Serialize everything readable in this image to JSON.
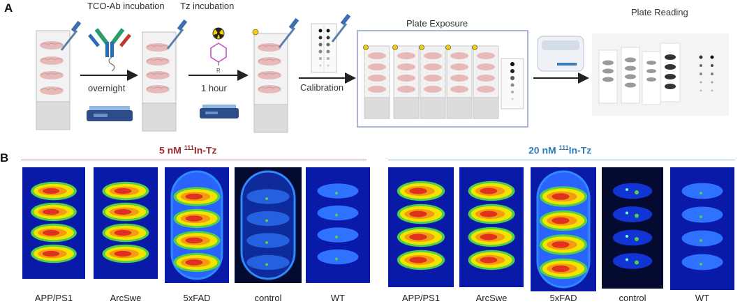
{
  "panel_a": {
    "label": "A",
    "steps": {
      "tco": "TCO-Ab incubation",
      "tz": "Tz incubation",
      "exposure": "Plate Exposure",
      "reading": "Plate Reading"
    },
    "arrows": {
      "overnight": "overnight",
      "hour": "1 hour",
      "calibration": "Calibration"
    },
    "tz_molecule_label": "R"
  },
  "panel_b": {
    "label": "B",
    "left_group": {
      "conc_prefix": "5 nM ",
      "isotope": "111",
      "conc_suffix": "In-Tz"
    },
    "right_group": {
      "conc_prefix": "20 nM ",
      "isotope": "111",
      "conc_suffix": "In-Tz"
    },
    "left_samples": [
      "APP/PS1",
      "ArcSwe",
      "5xFAD",
      "control",
      "WT"
    ],
    "right_samples": [
      "APP/PS1",
      "ArcSwe",
      "5xFAD",
      "control",
      "WT"
    ]
  },
  "colors": {
    "rule_red": "#c08a8a",
    "rule_blue": "#7fb3d6",
    "hot_red": "#e0301e",
    "hot_yellow": "#f2e400",
    "mid_green": "#4fd04a",
    "cool_blue": "#1c4fff",
    "background_blue": "#0a1aa8"
  },
  "icons": [
    "antibody-icon",
    "radioactive-icon",
    "shaker-icon",
    "pipette-icon",
    "plate-reader-icon"
  ]
}
